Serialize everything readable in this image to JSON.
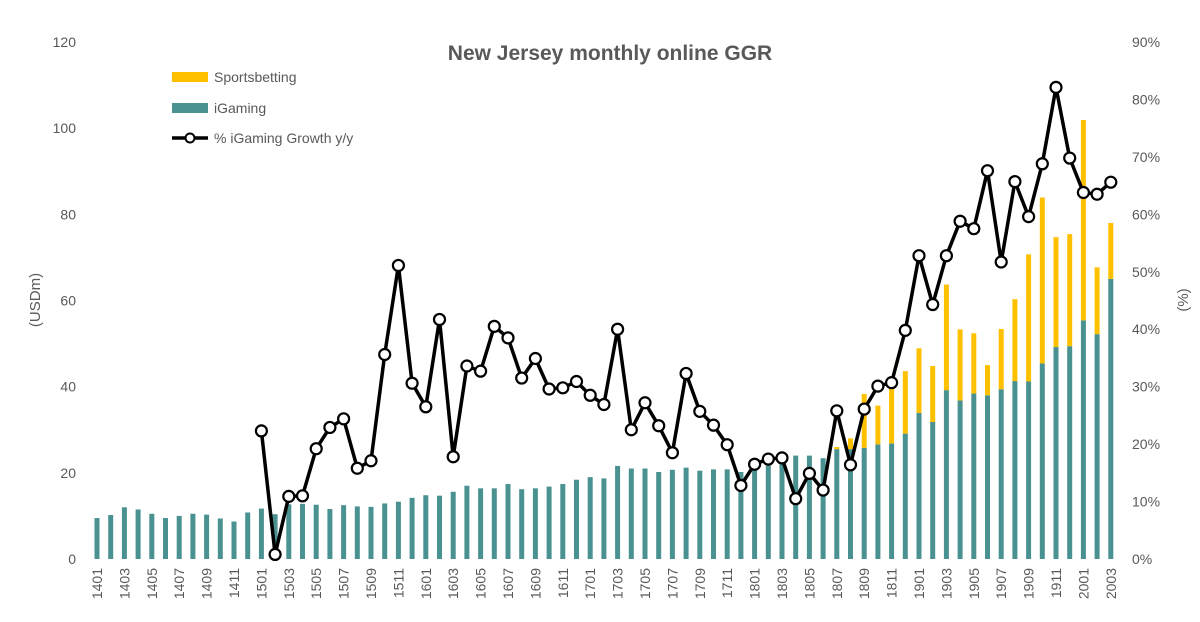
{
  "chart_data": {
    "type": "bar",
    "title": "New Jersey monthly online GGR",
    "ylabel": "(USDm)",
    "y2label": "(%)",
    "ylim": [
      0,
      120
    ],
    "y2lim": [
      0,
      90
    ],
    "yticks": [
      "0",
      "20",
      "40",
      "60",
      "80",
      "100",
      "120"
    ],
    "y2ticks": [
      "0%",
      "10%",
      "20%",
      "30%",
      "40%",
      "50%",
      "60%",
      "70%",
      "80%",
      "90%"
    ],
    "categories": [
      "1401",
      "1402",
      "1403",
      "1404",
      "1405",
      "1406",
      "1407",
      "1408",
      "1409",
      "1410",
      "1411",
      "1412",
      "1501",
      "1502",
      "1503",
      "1504",
      "1505",
      "1506",
      "1507",
      "1508",
      "1509",
      "1510",
      "1511",
      "1512",
      "1601",
      "1602",
      "1603",
      "1604",
      "1605",
      "1606",
      "1607",
      "1608",
      "1609",
      "1610",
      "1611",
      "1612",
      "1701",
      "1702",
      "1703",
      "1704",
      "1705",
      "1706",
      "1707",
      "1708",
      "1709",
      "1710",
      "1711",
      "1712",
      "1801",
      "1802",
      "1803",
      "1804",
      "1805",
      "1806",
      "1807",
      "1808",
      "1809",
      "1810",
      "1811",
      "1812",
      "1901",
      "1902",
      "1903",
      "1904",
      "1905",
      "1906",
      "1907",
      "1908",
      "1909",
      "1910",
      "1911",
      "1912",
      "2001",
      "2002",
      "2003"
    ],
    "xticklabels": [
      "1401",
      "1403",
      "1405",
      "1407",
      "1409",
      "1411",
      "1501",
      "1503",
      "1505",
      "1507",
      "1509",
      "1511",
      "1601",
      "1603",
      "1605",
      "1607",
      "1609",
      "1611",
      "1701",
      "1703",
      "1705",
      "1707",
      "1709",
      "1711",
      "1801",
      "1803",
      "1805",
      "1807",
      "1809",
      "1811",
      "1901",
      "1903",
      "1905",
      "1907",
      "1909",
      "1911",
      "2001",
      "2003"
    ],
    "series": [
      {
        "name": "Sportsbetting",
        "kind": "stacked-bar",
        "color": "#FFC000",
        "values": [
          0,
          0,
          0,
          0,
          0,
          0,
          0,
          0,
          0,
          0,
          0,
          0,
          0,
          0,
          0,
          0,
          0,
          0,
          0,
          0,
          0,
          0,
          0,
          0,
          0,
          0,
          0,
          0,
          0,
          0,
          0,
          0,
          0,
          0,
          0,
          0,
          0,
          0,
          0,
          0,
          0,
          0,
          0,
          0,
          0,
          0,
          0,
          0,
          0,
          0,
          0,
          0,
          0,
          0,
          0.5,
          2.5,
          12.5,
          9,
          14,
          14.5,
          15,
          13,
          24.5,
          16.5,
          14,
          7,
          14,
          19,
          29.5,
          38.5,
          25.5,
          26,
          46.5,
          15.5,
          13
        ]
      },
      {
        "name": "iGaming",
        "kind": "stacked-bar",
        "color": "#4A9191",
        "values": [
          9.5,
          10.2,
          12,
          11.5,
          10.5,
          9.5,
          10,
          10.5,
          10.3,
          9.4,
          8.7,
          10.8,
          11.7,
          10.4,
          12.7,
          12.8,
          12.6,
          11.6,
          12.5,
          12.2,
          12.1,
          12.9,
          13.3,
          14.2,
          14.8,
          14.7,
          15.6,
          17,
          16.4,
          16.4,
          17.4,
          16.2,
          16.4,
          16.8,
          17.4,
          18.4,
          19,
          18.7,
          21.6,
          21,
          21,
          20.2,
          20.7,
          21.2,
          20.5,
          20.8,
          20.8,
          20.2,
          21.2,
          21.8,
          24.7,
          24,
          24,
          23.4,
          25.5,
          25.5,
          25.8,
          26.6,
          26.8,
          29.1,
          33.9,
          31.8,
          39.2,
          36.8,
          38.4,
          38,
          39.4,
          41.3,
          41.2,
          45.4,
          49.2,
          49.4,
          55.4,
          52.2,
          65
        ]
      },
      {
        "name": "% iGaming Growth y/y",
        "kind": "line-secondary",
        "color": "#000000",
        "values": [
          null,
          null,
          null,
          null,
          null,
          null,
          null,
          null,
          null,
          null,
          null,
          null,
          22.3,
          0.8,
          10.9,
          11,
          19.2,
          22.9,
          24.4,
          15.8,
          17.1,
          35.6,
          51.1,
          30.6,
          26.5,
          41.7,
          17.8,
          33.6,
          32.7,
          40.5,
          38.5,
          31.5,
          34.9,
          29.6,
          29.8,
          30.9,
          28.5,
          26.9,
          40,
          22.5,
          27.2,
          23.2,
          18.5,
          32.3,
          25.7,
          23.3,
          19.9,
          12.8,
          16.5,
          17.4,
          17.6,
          10.5,
          14.9,
          12,
          25.8,
          16.4,
          26.1,
          30.1,
          30.7,
          39.8,
          52.8,
          44.3,
          52.8,
          58.8,
          57.5,
          67.6,
          51.7,
          65.7,
          59.6,
          68.8,
          82.1,
          69.8,
          63.8,
          63.5,
          65.6
        ]
      }
    ],
    "legend": "top-left",
    "grid": false
  }
}
